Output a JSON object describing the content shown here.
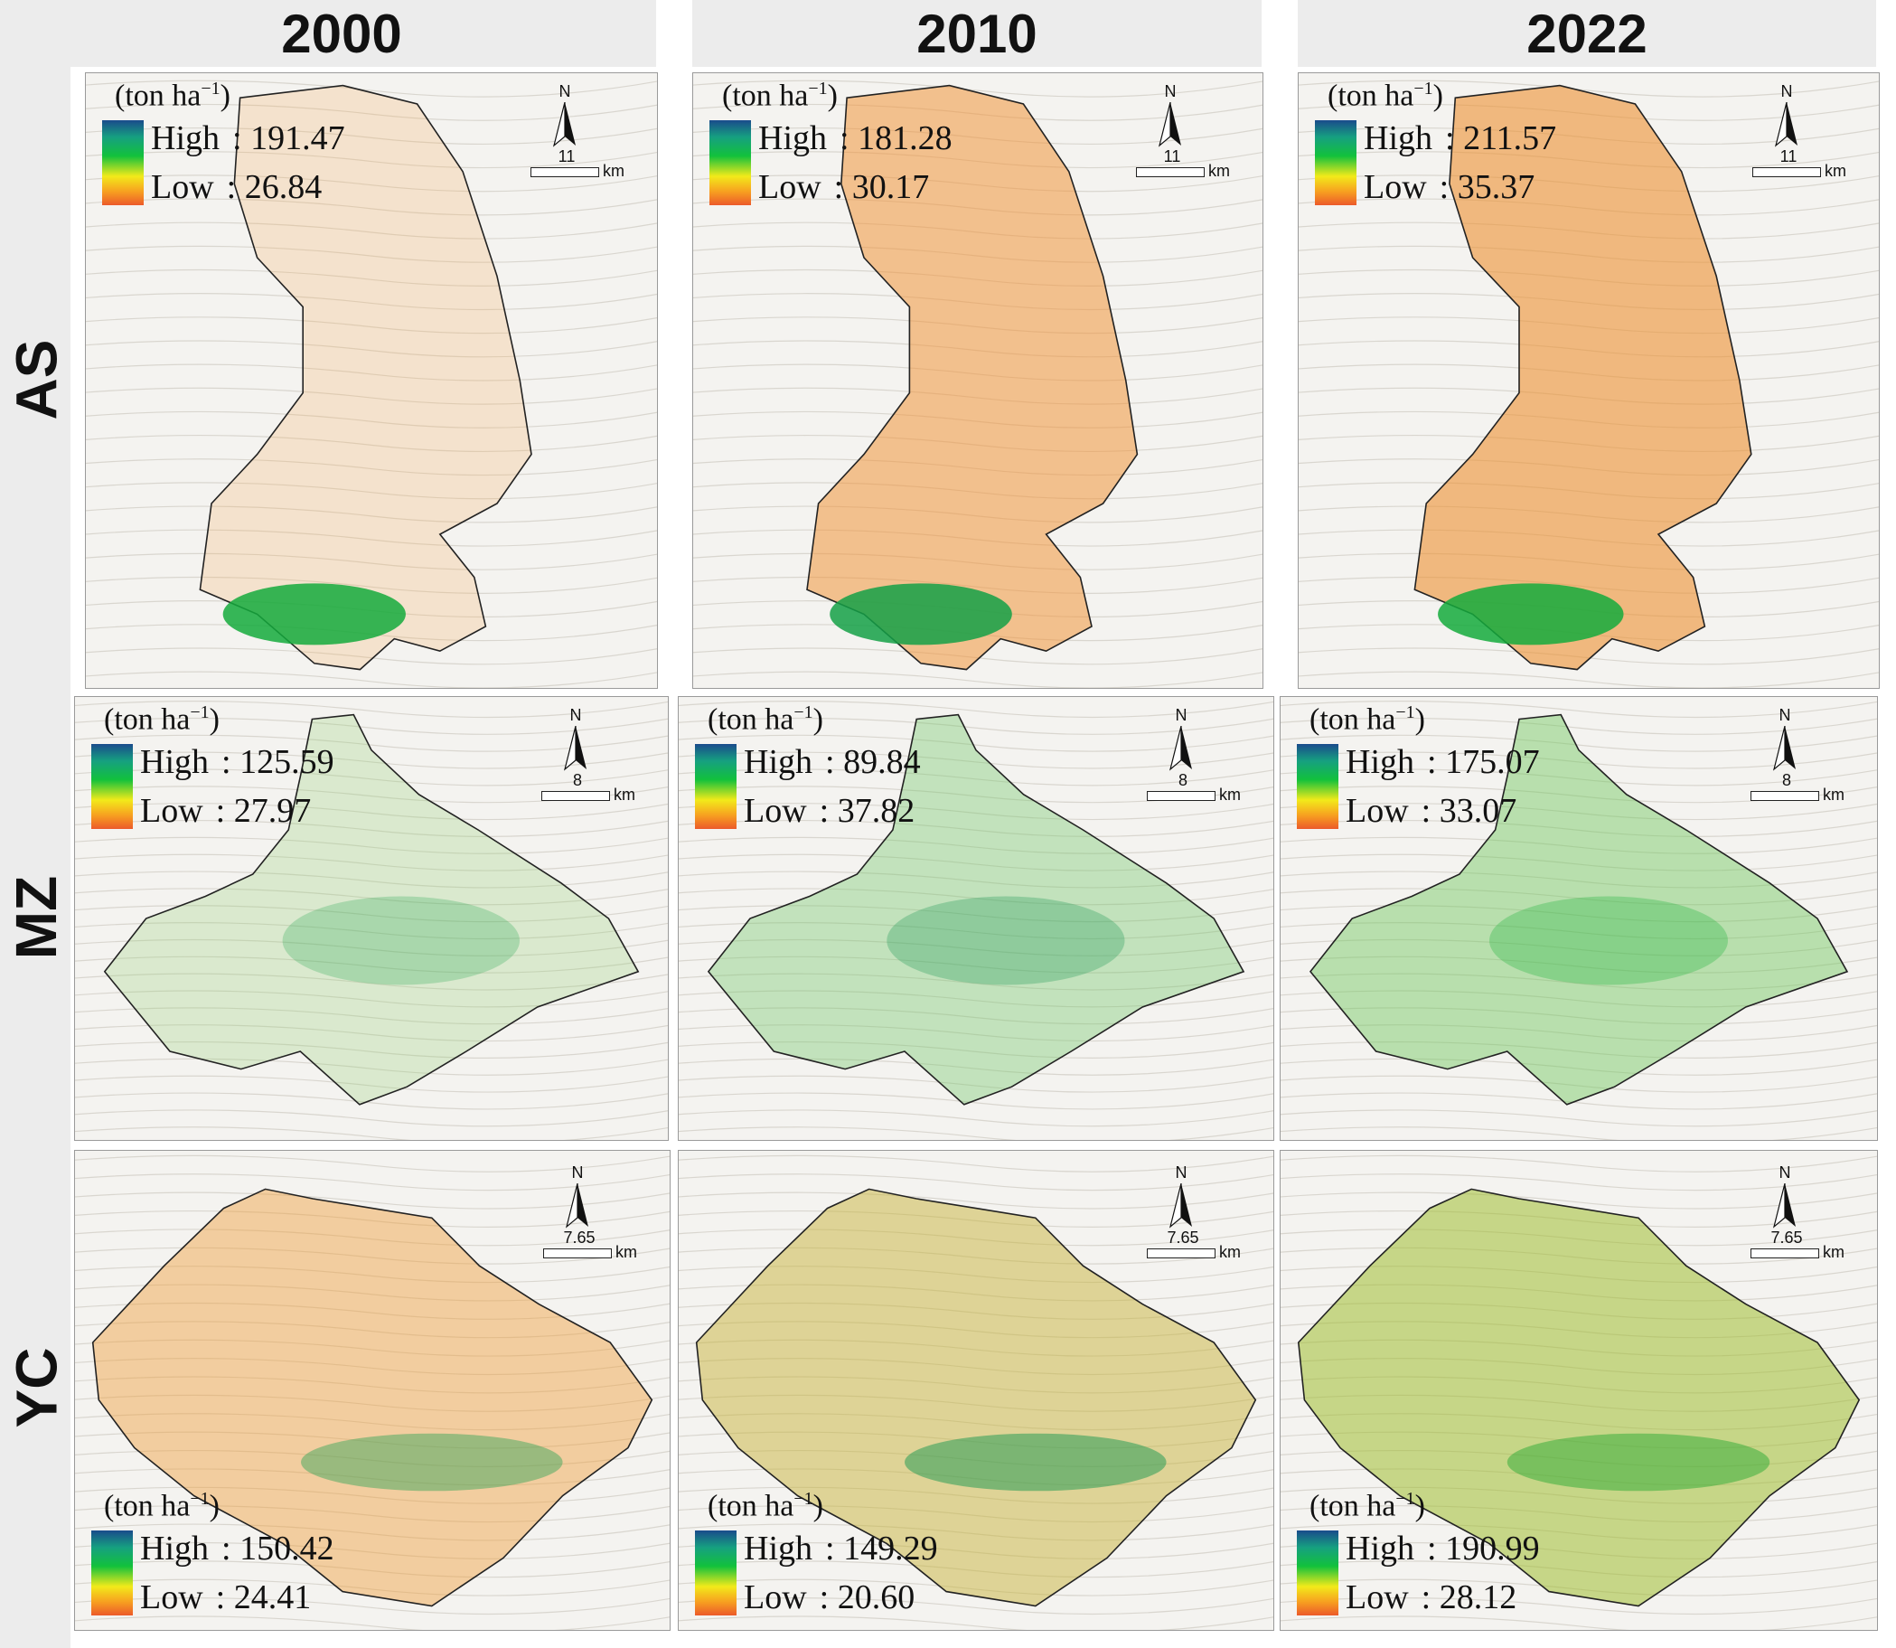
{
  "columns": [
    "2000",
    "2010",
    "2022"
  ],
  "rows": [
    "AS",
    "MZ",
    "YC"
  ],
  "legend_unit": "(ton ha",
  "legend_unit_sup": "−1",
  "legend_unit_close": ")",
  "high_label": "High",
  "low_label": "Low",
  "separator": ":",
  "km_label": "km",
  "north_label": "N",
  "colors": {
    "ramp": [
      "#1a4b8c",
      "#16a080",
      "#12c13c",
      "#f2ea1a",
      "#f7a020",
      "#ec5a2a"
    ],
    "boundary": "#222222",
    "hillshade": "#f4f3f0"
  },
  "panels": [
    {
      "region": "AS",
      "year": "2000",
      "high": "191.47",
      "low": "26.84",
      "scale": "11",
      "legend_position": "top-left"
    },
    {
      "region": "AS",
      "year": "2010",
      "high": "181.28",
      "low": "30.17",
      "scale": "11",
      "legend_position": "top-left"
    },
    {
      "region": "AS",
      "year": "2022",
      "high": "211.57",
      "low": "35.37",
      "scale": "11",
      "legend_position": "top-left"
    },
    {
      "region": "MZ",
      "year": "2000",
      "high": "125.59",
      "low": "27.97",
      "scale": "8",
      "legend_position": "top-left"
    },
    {
      "region": "MZ",
      "year": "2010",
      "high": "89.84",
      "low": "37.82",
      "scale": "8",
      "legend_position": "top-left"
    },
    {
      "region": "MZ",
      "year": "2022",
      "high": "175.07",
      "low": "33.07",
      "scale": "8",
      "legend_position": "top-left"
    },
    {
      "region": "YC",
      "year": "2000",
      "high": "150.42",
      "low": "24.41",
      "scale": "7.65",
      "legend_position": "bottom-left"
    },
    {
      "region": "YC",
      "year": "2010",
      "high": "149.29",
      "low": "20.60",
      "scale": "7.65",
      "legend_position": "bottom-left"
    },
    {
      "region": "YC",
      "year": "2022",
      "high": "190.99",
      "low": "28.12",
      "scale": "7.65",
      "legend_position": "bottom-left"
    }
  ]
}
